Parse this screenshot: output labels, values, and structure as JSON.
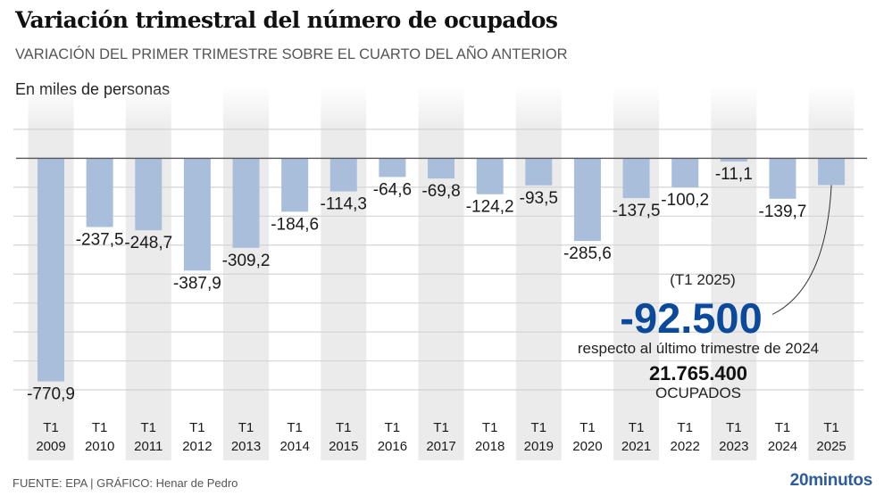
{
  "header": {
    "title": "Variación trimestral del número de ocupados",
    "subtitle": "VARIACIÓN DEL PRIMER TRIMESTRE SOBRE EL CUARTO DEL AÑO ANTERIOR",
    "unit_label": "En miles de personas"
  },
  "chart_data": {
    "type": "bar",
    "title": "Variación trimestral del número de ocupados",
    "subtitle": "VARIACIÓN DEL PRIMER TRIMESTRE SOBRE EL CUARTO DEL AÑO ANTERIOR",
    "ylabel": "En miles de personas",
    "xlabel": "",
    "categories": [
      "T1 2009",
      "T1 2010",
      "T1 2011",
      "T1 2012",
      "T1 2013",
      "T1 2014",
      "T1 2015",
      "T1 2016",
      "T1 2017",
      "T1 2018",
      "T1 2019",
      "T1 2020",
      "T1 2021",
      "T1 2022",
      "T1 2023",
      "T1 2024",
      "T1 2025"
    ],
    "category_lines": [
      [
        "T1",
        "2009"
      ],
      [
        "T1",
        "2010"
      ],
      [
        "T1",
        "2011"
      ],
      [
        "T1",
        "2012"
      ],
      [
        "T1",
        "2013"
      ],
      [
        "T1",
        "2014"
      ],
      [
        "T1",
        "2015"
      ],
      [
        "T1",
        "2016"
      ],
      [
        "T1",
        "2017"
      ],
      [
        "T1",
        "2018"
      ],
      [
        "T1",
        "2019"
      ],
      [
        "T1",
        "2020"
      ],
      [
        "T1",
        "2021"
      ],
      [
        "T1",
        "2022"
      ],
      [
        "T1",
        "2023"
      ],
      [
        "T1",
        "2024"
      ],
      [
        "T1",
        "2025"
      ]
    ],
    "values": [
      -770.9,
      -237.5,
      -248.7,
      -387.9,
      -309.2,
      -184.6,
      -114.3,
      -64.6,
      -69.8,
      -124.2,
      -93.5,
      -285.6,
      -137.5,
      -100.2,
      -11.1,
      -139.7,
      -92.5
    ],
    "data_labels": [
      "-770,9",
      "-237,5",
      "-248,7",
      "-387,9",
      "-309,2",
      "-184,6",
      "-114,3",
      "-64,6",
      "-69,8",
      "-124,2",
      "-93,5",
      "-285,6",
      "-137,5",
      "-100,2",
      "-11,1",
      "-139,7",
      ""
    ],
    "ylim": [
      -800,
      100
    ],
    "gridlines": [
      100,
      0,
      -100,
      -200,
      -300,
      -400,
      -500,
      -600,
      -700,
      -800
    ],
    "grid": true,
    "y_tick_labels_shown": false,
    "colors": {
      "bar": "#a9bedb",
      "band": "#ebebeb",
      "grid": "#d4d4d4",
      "zero_line": "#555555",
      "highlight": "#0b4a9b"
    },
    "annotation": {
      "target_category": "T1 2025",
      "period": "(T1 2025)",
      "big_value": "-92.500",
      "description": "respecto al último trimestre de 2024",
      "total": "21.765.400",
      "total_label": "OCUPADOS"
    }
  },
  "footer": {
    "source": "FUENTE: EPA  |  GRÁFICO: Henar de Pedro",
    "brand": "20minutos"
  }
}
